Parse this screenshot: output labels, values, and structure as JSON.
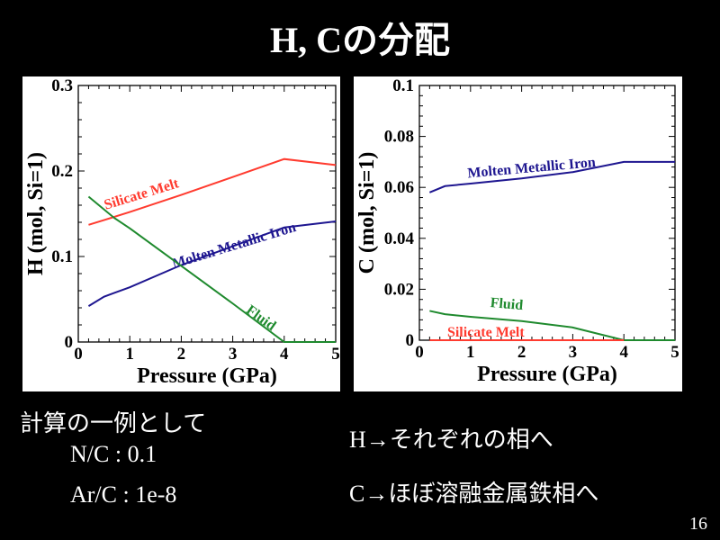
{
  "slide": {
    "title": "H, Cの分配",
    "example_heading": "計算の一例として",
    "nc_ratio": "N/C : 0.1",
    "arc_ratio": "Ar/C : 1e-8",
    "h_note": "H→それぞれの相へ",
    "c_note": "C→ほぼ溶融金属鉄相へ",
    "page_number": "16"
  },
  "chart_data": [
    {
      "type": "line",
      "xlabel": "Pressure (GPa)",
      "ylabel": "H (mol, Si=1)",
      "xlim": [
        0,
        5
      ],
      "ylim": [
        0,
        0.3
      ],
      "xticks": [
        "0",
        "1",
        "2",
        "3",
        "4",
        "5"
      ],
      "yticks": [
        "0",
        "0.1",
        "0.2",
        "0.3"
      ],
      "grid": false,
      "series": [
        {
          "name": "Silicate Melt",
          "color": "#ff3b2f",
          "x": [
            0.2,
            1,
            2,
            3,
            4,
            5
          ],
          "y": [
            0.137,
            0.152,
            0.172,
            0.193,
            0.214,
            0.207
          ]
        },
        {
          "name": "Molten Metallic Iron",
          "color": "#1e1690",
          "x": [
            0.2,
            0.5,
            1,
            2,
            3,
            4,
            5
          ],
          "y": [
            0.042,
            0.053,
            0.064,
            0.09,
            0.112,
            0.134,
            0.141
          ]
        },
        {
          "name": "Fluid",
          "color": "#1f8a2e",
          "x": [
            0.2,
            0.7,
            1,
            2,
            3,
            4,
            5
          ],
          "y": [
            0.17,
            0.145,
            0.133,
            0.089,
            0.045,
            0.0,
            0.0
          ]
        }
      ]
    },
    {
      "type": "line",
      "xlabel": "Pressure (GPa)",
      "ylabel": "C (mol, Si=1)",
      "xlim": [
        0,
        5
      ],
      "ylim": [
        0,
        0.1
      ],
      "xticks": [
        "0",
        "1",
        "2",
        "3",
        "4",
        "5"
      ],
      "yticks": [
        "0",
        "0.02",
        "0.04",
        "0.06",
        "0.08",
        "0.1"
      ],
      "grid": false,
      "series": [
        {
          "name": "Molten Metallic Iron",
          "color": "#1e1690",
          "x": [
            0.2,
            0.5,
            1,
            2,
            3,
            4,
            5
          ],
          "y": [
            0.058,
            0.0605,
            0.0615,
            0.0635,
            0.066,
            0.07,
            0.07
          ]
        },
        {
          "name": "Fluid",
          "color": "#1f8a2e",
          "x": [
            0.2,
            0.5,
            1,
            2,
            3,
            4,
            5
          ],
          "y": [
            0.0115,
            0.0102,
            0.0092,
            0.0075,
            0.005,
            0.0,
            0.0
          ]
        },
        {
          "name": "Silicate Melt",
          "color": "#ff3b2f",
          "x": [
            0.2,
            4
          ],
          "y": [
            0.0,
            0.0
          ]
        }
      ]
    }
  ]
}
